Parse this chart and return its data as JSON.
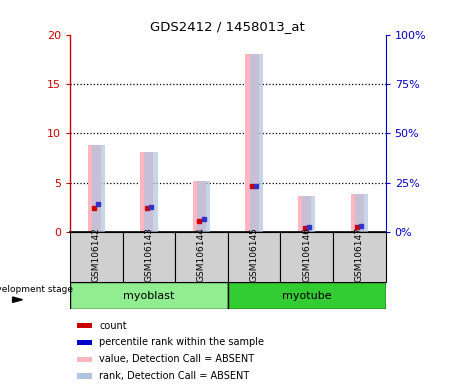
{
  "title": "GDS2412 / 1458013_at",
  "samples": [
    "GSM106142",
    "GSM106143",
    "GSM106144",
    "GSM106145",
    "GSM106146",
    "GSM106147"
  ],
  "pink_bar_heights": [
    8.8,
    8.1,
    5.2,
    18.0,
    3.7,
    3.9
  ],
  "lightblue_bar_heights": [
    8.8,
    8.1,
    5.2,
    18.0,
    3.7,
    3.9
  ],
  "red_dot_y": [
    2.5,
    2.5,
    1.1,
    4.7,
    0.45,
    0.5
  ],
  "blue_dot_y": [
    2.9,
    2.6,
    1.3,
    4.7,
    0.55,
    0.6
  ],
  "ylim_left": [
    0,
    20
  ],
  "ylim_right": [
    0,
    100
  ],
  "yticks_left": [
    0,
    5,
    10,
    15,
    20
  ],
  "yticks_right": [
    0,
    25,
    50,
    75,
    100
  ],
  "ytick_labels_right": [
    "0%",
    "25%",
    "50%",
    "75%",
    "100%"
  ],
  "pink_color": "#ffb6c1",
  "lightblue_color": "#b0c4de",
  "red_color": "#cc0000",
  "blue_color": "#3333cc",
  "left_axis_color": "#cc0000",
  "right_axis_color": "#0000cc",
  "myoblast_color": "#90ee90",
  "myotube_color": "#33cc33",
  "sample_box_color": "#d0d0d0",
  "legend_items": [
    {
      "label": "count",
      "color": "#cc0000"
    },
    {
      "label": "percentile rank within the sample",
      "color": "#0000cc"
    },
    {
      "label": "value, Detection Call = ABSENT",
      "color": "#ffb6c1"
    },
    {
      "label": "rank, Detection Call = ABSENT",
      "color": "#b0c4de"
    }
  ]
}
